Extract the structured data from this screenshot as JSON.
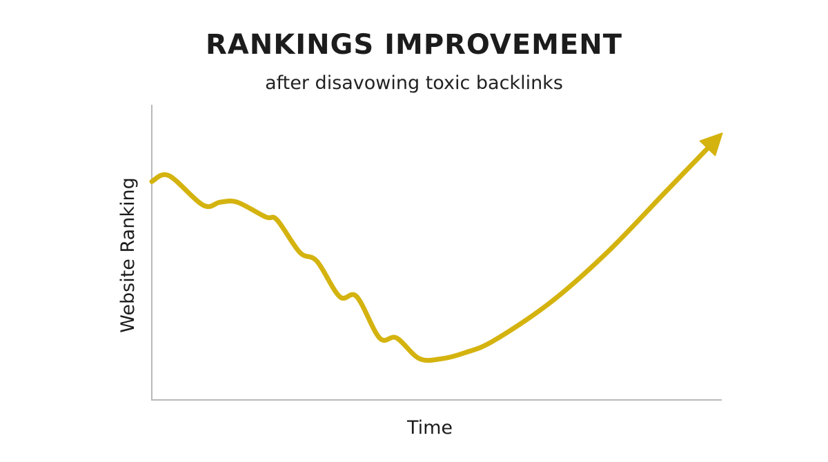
{
  "chart_data": {
    "type": "line",
    "title": "RANKINGS IMPROVEMENT",
    "subtitle": "after disavowing toxic backlinks",
    "xlabel": "Time",
    "ylabel": "Website Ranking",
    "ticks_shown": false,
    "grid": false,
    "legend": "none",
    "end_marker": "arrow",
    "series": [
      {
        "color": "#D4B30F",
        "x": [
          0,
          0.03,
          0.09,
          0.12,
          0.15,
          0.2,
          0.22,
          0.26,
          0.29,
          0.33,
          0.36,
          0.4,
          0.43,
          0.47,
          0.51,
          0.55,
          0.6,
          0.7,
          0.8,
          0.9,
          0.99
        ],
        "y": [
          0.74,
          0.76,
          0.66,
          0.67,
          0.67,
          0.62,
          0.61,
          0.5,
          0.47,
          0.35,
          0.35,
          0.21,
          0.21,
          0.14,
          0.14,
          0.16,
          0.2,
          0.33,
          0.5,
          0.7,
          0.88
        ]
      }
    ]
  },
  "colors": {
    "line": "#D4B30F",
    "axis": "#b8b8b8",
    "text": "#1c1c1c"
  }
}
